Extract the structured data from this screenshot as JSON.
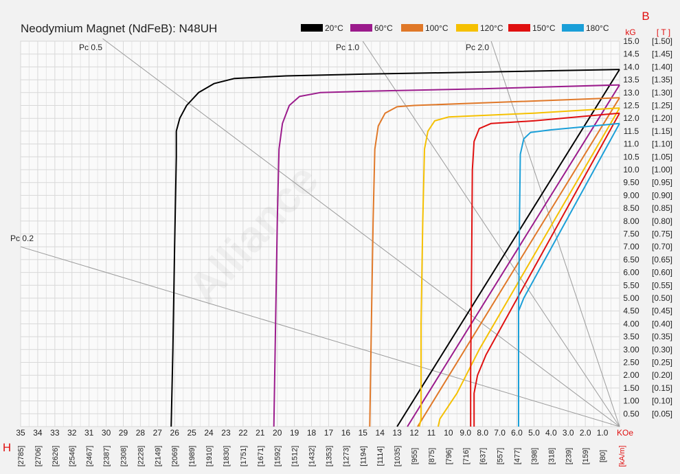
{
  "chart_data": {
    "type": "line",
    "title": "Neodymium Magnet (NdFeB):  N48UH",
    "watermark": "Alliance",
    "xlabel": "H",
    "x_unit_primary": "KOe",
    "x_unit_secondary": "[kA/m]",
    "ylabel": "B",
    "y_unit_primary": "kG",
    "y_unit_secondary": "[ T ]",
    "xlim": [
      0,
      35
    ],
    "ylim": [
      0,
      15
    ],
    "x_ticks": [
      "35",
      "34",
      "33",
      "32",
      "31",
      "30",
      "29",
      "28",
      "27",
      "26",
      "25",
      "24",
      "23",
      "22",
      "21",
      "20",
      "19",
      "18",
      "17",
      "16",
      "15",
      "14",
      "13",
      "12",
      "11",
      "10",
      "9.0",
      "8.0",
      "7.0",
      "6.0",
      "5.0",
      "4.0",
      "3.0",
      "2.0",
      "1.0"
    ],
    "x_ticks_secondary": [
      "[2785]",
      "[2706]",
      "[2626]",
      "[2546]",
      "[2467]",
      "[2387]",
      "[2308]",
      "[2228]",
      "[2149]",
      "[2069]",
      "[1989]",
      "[1910]",
      "[1830]",
      "[1751]",
      "[1671]",
      "[1592]",
      "[1512]",
      "[1432]",
      "[1353]",
      "[1273]",
      "[1194]",
      "[1114]",
      "[1035]",
      "[955]",
      "[875]",
      "[796]",
      "[716]",
      "[637]",
      "[557]",
      "[477]",
      "[398]",
      "[318]",
      "[239]",
      "[159]",
      "[80]"
    ],
    "y_ticks": [
      "0.50",
      "1.00",
      "1.50",
      "2.00",
      "2.50",
      "3.00",
      "3.50",
      "4.00",
      "4.50",
      "5.00",
      "5.50",
      "6.00",
      "6.50",
      "7.00",
      "7.50",
      "8.00",
      "8.50",
      "9.00",
      "9.50",
      "10.0",
      "10.5",
      "11.0",
      "11.5",
      "12.0",
      "12.5",
      "13.0",
      "13.5",
      "14.0",
      "14.5",
      "15.0"
    ],
    "y_ticks_secondary": [
      "[0.05]",
      "[0.10]",
      "[0.15]",
      "[0.20]",
      "[0.25]",
      "[0.30]",
      "[0.35]",
      "[0.40]",
      "[0.45]",
      "[0.50]",
      "[0.55]",
      "[0.60]",
      "[0.65]",
      "[0.70]",
      "[0.75]",
      "[0.80]",
      "[0.85]",
      "[0.90]",
      "[0.95]",
      "[1.00]",
      "[1.05]",
      "[1.10]",
      "[1.15]",
      "[1.20]",
      "[1.25]",
      "[1.30]",
      "[1.35]",
      "[1.40]",
      "[1.45]",
      "[1.50]"
    ],
    "load_lines": [
      {
        "label": "Pc 0.2",
        "end": [
          35,
          7.0
        ]
      },
      {
        "label": "Pc 0.5",
        "end": [
          30.2,
          15.1
        ]
      },
      {
        "label": "Pc 1.0",
        "end": [
          15.0,
          15.0
        ]
      },
      {
        "label": "Pc 2.0",
        "end": [
          7.5,
          15.0
        ]
      }
    ],
    "series": [
      {
        "name": "20°C",
        "color": "#000000",
        "demag": [
          [
            26.2,
            0
          ],
          [
            26.1,
            3
          ],
          [
            26.0,
            7
          ],
          [
            25.9,
            10.5
          ],
          [
            25.9,
            11.5
          ],
          [
            25.7,
            12.0
          ],
          [
            25.3,
            12.5
          ],
          [
            24.6,
            13.0
          ],
          [
            23.7,
            13.35
          ],
          [
            22.5,
            13.55
          ],
          [
            19.5,
            13.65
          ],
          [
            15,
            13.72
          ],
          [
            8,
            13.8
          ],
          [
            0,
            13.9
          ]
        ],
        "normal": [
          [
            13.0,
            0
          ],
          [
            0,
            13.9
          ]
        ]
      },
      {
        "name": "60°C",
        "color": "#9b1b8c",
        "demag": [
          [
            20.2,
            0
          ],
          [
            20.1,
            4
          ],
          [
            20.0,
            8
          ],
          [
            19.9,
            10.8
          ],
          [
            19.7,
            11.8
          ],
          [
            19.3,
            12.5
          ],
          [
            18.7,
            12.85
          ],
          [
            17.5,
            13.0
          ],
          [
            15,
            13.05
          ],
          [
            8,
            13.15
          ],
          [
            0,
            13.3
          ]
        ],
        "normal": [
          [
            12.4,
            0
          ],
          [
            0,
            13.3
          ]
        ]
      },
      {
        "name": "100°C",
        "color": "#e07828",
        "demag": [
          [
            14.6,
            0
          ],
          [
            14.5,
            4
          ],
          [
            14.4,
            8
          ],
          [
            14.3,
            10.8
          ],
          [
            14.1,
            11.7
          ],
          [
            13.7,
            12.2
          ],
          [
            13.0,
            12.45
          ],
          [
            12,
            12.5
          ],
          [
            8,
            12.6
          ],
          [
            0,
            12.8
          ]
        ],
        "normal": [
          [
            11.8,
            0
          ],
          [
            0,
            12.8
          ]
        ]
      },
      {
        "name": "120°C",
        "color": "#f5c000",
        "demag": [
          [
            11.7,
            0
          ],
          [
            11.6,
            0.3
          ],
          [
            11.6,
            2
          ],
          [
            11.6,
            4
          ],
          [
            11.5,
            8
          ],
          [
            11.4,
            10.8
          ],
          [
            11.2,
            11.5
          ],
          [
            10.8,
            11.9
          ],
          [
            10.0,
            12.05
          ],
          [
            5,
            12.2
          ],
          [
            0,
            12.4
          ]
        ],
        "normal": [
          [
            10.6,
            0
          ],
          [
            10.5,
            0.3
          ],
          [
            9.5,
            1.3
          ],
          [
            8.2,
            3.0
          ],
          [
            0,
            12.4
          ]
        ]
      },
      {
        "name": "150°C",
        "color": "#e01010",
        "demag": [
          [
            8.7,
            0
          ],
          [
            8.7,
            2
          ],
          [
            8.65,
            6
          ],
          [
            8.6,
            10
          ],
          [
            8.5,
            11.1
          ],
          [
            8.2,
            11.6
          ],
          [
            7.5,
            11.8
          ],
          [
            5,
            11.9
          ],
          [
            0,
            12.2
          ]
        ],
        "normal": [
          [
            8.5,
            0
          ],
          [
            8.5,
            1.3
          ],
          [
            8.3,
            2.0
          ],
          [
            7.8,
            2.8
          ],
          [
            0,
            12.2
          ]
        ]
      },
      {
        "name": "180°C",
        "color": "#1a9fd8",
        "demag": [
          [
            5.9,
            0
          ],
          [
            5.9,
            4.5
          ],
          [
            5.85,
            8
          ],
          [
            5.8,
            10.6
          ],
          [
            5.6,
            11.2
          ],
          [
            5.2,
            11.45
          ],
          [
            4,
            11.55
          ],
          [
            0,
            11.8
          ]
        ],
        "normal": [
          [
            5.9,
            0
          ],
          [
            5.9,
            4.5
          ],
          [
            5.6,
            5.0
          ],
          [
            0,
            11.8
          ]
        ]
      }
    ]
  }
}
